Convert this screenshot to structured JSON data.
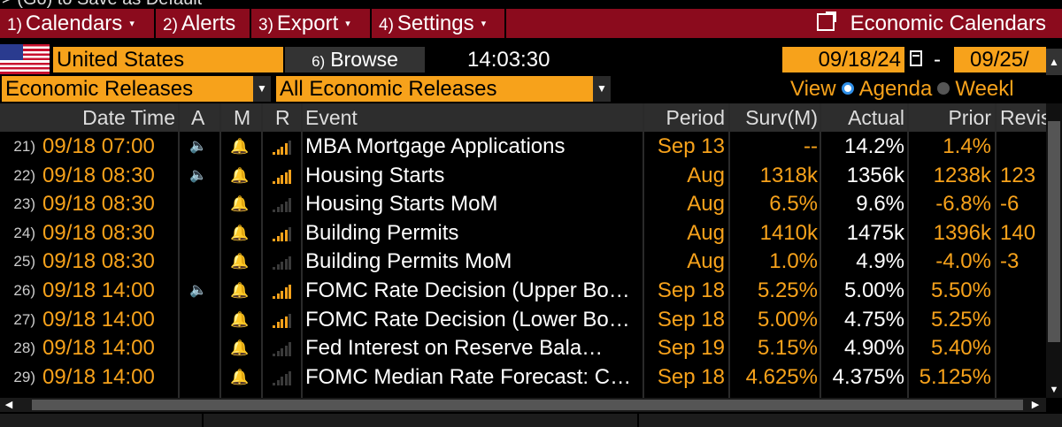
{
  "top_strip_text": "> (Go) to Save as Default",
  "menu": {
    "items": [
      {
        "num": "1)",
        "label": "Calendars"
      },
      {
        "num": "2)",
        "label": "Alerts"
      },
      {
        "num": "3)",
        "label": "Export"
      },
      {
        "num": "4)",
        "label": "Settings"
      }
    ],
    "right_label": "Economic Calendars"
  },
  "toolbar": {
    "country": "United States",
    "browse_num": "6)",
    "browse_label": "Browse",
    "time": "14:03:30",
    "date_from": "09/18/24",
    "date_separator": "-",
    "date_to": "09/25/",
    "release_type": "Economic Releases",
    "release_filter": "All Economic Releases",
    "view_label": "View",
    "view_options": [
      "Agenda",
      "Weekl"
    ],
    "view_selected": "Agenda"
  },
  "table": {
    "headers": {
      "datetime": "Date Time",
      "a": "A",
      "m": "M",
      "r": "R",
      "event": "Event",
      "period": "Period",
      "surv": "Surv(M)",
      "actual": "Actual",
      "prior": "Prior",
      "revised": "Revis"
    },
    "rows": [
      {
        "num": "21)",
        "datetime": "09/18 07:00",
        "speaker": true,
        "relevance": 4,
        "event": "MBA Mortgage Applications",
        "period": "Sep 13",
        "surv": "--",
        "actual": "14.2%",
        "prior": "1.4%",
        "revised": ""
      },
      {
        "num": "22)",
        "datetime": "09/18 08:30",
        "speaker": true,
        "relevance": 5,
        "event": "Housing Starts",
        "period": "Aug",
        "surv": "1318k",
        "actual": "1356k",
        "prior": "1238k",
        "revised": "123"
      },
      {
        "num": "23)",
        "datetime": "09/18 08:30",
        "speaker": false,
        "relevance": 0,
        "event": "Housing Starts MoM",
        "period": "Aug",
        "surv": "6.5%",
        "actual": "9.6%",
        "prior": "-6.8%",
        "revised": "-6"
      },
      {
        "num": "24)",
        "datetime": "09/18 08:30",
        "speaker": false,
        "relevance": 4,
        "event": "Building Permits",
        "period": "Aug",
        "surv": "1410k",
        "actual": "1475k",
        "prior": "1396k",
        "revised": "140"
      },
      {
        "num": "25)",
        "datetime": "09/18 08:30",
        "speaker": false,
        "relevance": 0,
        "event": "Building Permits MoM",
        "period": "Aug",
        "surv": "1.0%",
        "actual": "4.9%",
        "prior": "-4.0%",
        "revised": "-3"
      },
      {
        "num": "26)",
        "datetime": "09/18 14:00",
        "speaker": true,
        "relevance": 5,
        "event": "FOMC Rate Decision (Upper Bo…",
        "period": "Sep 18",
        "surv": "5.25%",
        "actual": "5.00%",
        "prior": "5.50%",
        "revised": ""
      },
      {
        "num": "27)",
        "datetime": "09/18 14:00",
        "speaker": false,
        "relevance": 4,
        "event": "FOMC Rate Decision (Lower Bo…",
        "period": "Sep 18",
        "surv": "5.00%",
        "actual": "4.75%",
        "prior": "5.25%",
        "revised": ""
      },
      {
        "num": "28)",
        "datetime": "09/18 14:00",
        "speaker": false,
        "relevance": 0,
        "event": "Fed Interest on Reserve Bala…",
        "period": "Sep 19",
        "surv": "5.15%",
        "actual": "4.90%",
        "prior": "5.40%",
        "revised": ""
      },
      {
        "num": "29)",
        "datetime": "09/18 14:00",
        "speaker": false,
        "relevance": 0,
        "event": "FOMC Median Rate Forecast: C…",
        "period": "Sep 18",
        "surv": "4.625%",
        "actual": "4.375%",
        "prior": "5.125%",
        "revised": ""
      }
    ]
  },
  "icons": {
    "speaker": "🔈",
    "bell": "🔔",
    "caret": "▾",
    "dd_arrow": "▼"
  },
  "colors": {
    "accent": "#f7a21b",
    "menu_bg": "#8b0b1d",
    "relevance_on": "#f7a21b",
    "relevance_off": "#3a3a3a"
  }
}
